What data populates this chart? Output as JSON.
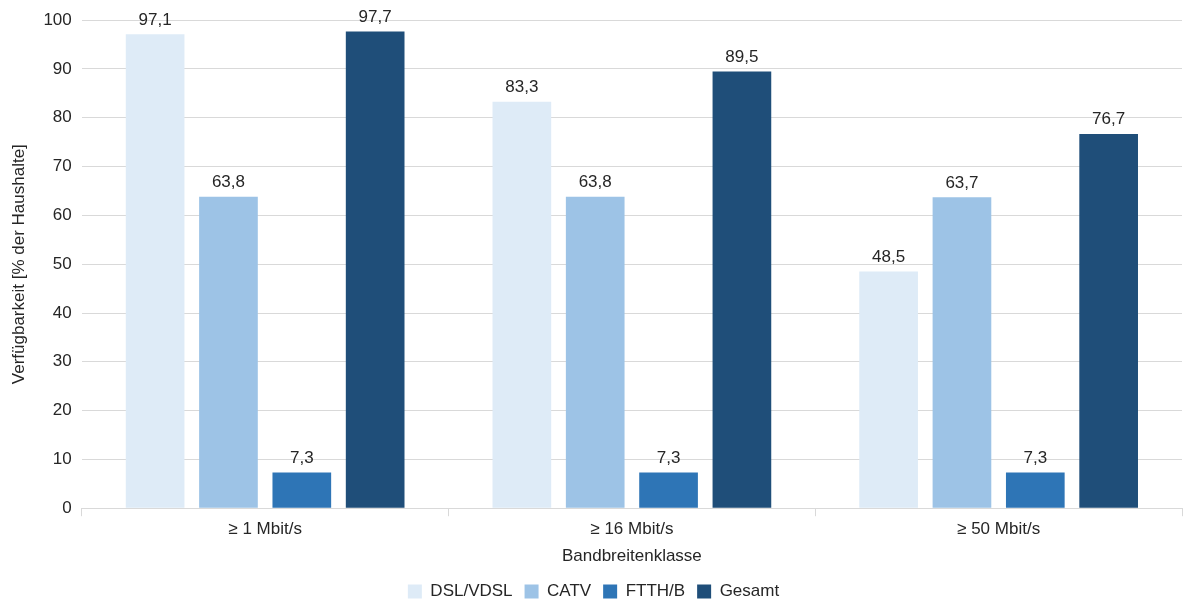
{
  "chart_data": {
    "type": "bar",
    "xlabel": "Bandbreitenklasse",
    "ylabel": "Verfügbarkeit [% der Haushalte]",
    "categories": [
      "≥ 1 Mbit/s",
      "≥ 16 Mbit/s",
      "≥ 50 Mbit/s"
    ],
    "series": [
      {
        "name": "DSL/VDSL",
        "color": "#deebf7",
        "values": [
          97.1,
          83.3,
          48.5
        ],
        "value_labels": [
          "97,1",
          "83,3",
          "48,5"
        ]
      },
      {
        "name": "CATV",
        "color": "#9dc3e6",
        "values": [
          63.8,
          63.8,
          63.7
        ],
        "value_labels": [
          "63,8",
          "63,8",
          "63,7"
        ]
      },
      {
        "name": "FTTH/B",
        "color": "#2e75b6",
        "values": [
          7.3,
          7.3,
          7.3
        ],
        "value_labels": [
          "7,3",
          "7,3",
          "7,3"
        ]
      },
      {
        "name": "Gesamt",
        "color": "#1f4e79",
        "values": [
          97.7,
          89.5,
          76.7
        ],
        "value_labels": [
          "97,7",
          "89,5",
          "76,7"
        ]
      }
    ],
    "ylim": [
      0,
      100
    ],
    "yticks": [
      0,
      10,
      20,
      30,
      40,
      50,
      60,
      70,
      80,
      90,
      100
    ],
    "grid": "y",
    "legend": "bottom"
  }
}
